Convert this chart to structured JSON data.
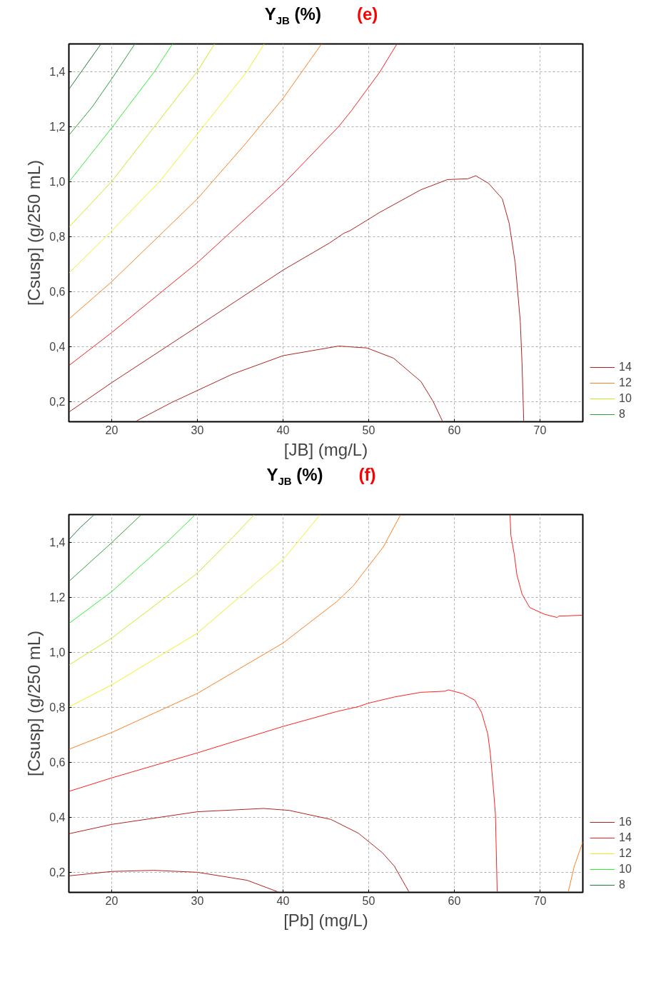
{
  "chart_data": [
    {
      "type": "line",
      "title": "Y$_{JB}$ (%)",
      "annotations": [
        "(e)"
      ],
      "xlabel": "[JB] (mg/L)",
      "ylabel": "[Csusp] (g/250 mL)",
      "xlim": [
        15,
        75
      ],
      "ylim": [
        0.127,
        1.5
      ],
      "xticks": [
        20,
        30,
        40,
        50,
        60,
        70
      ],
      "yticks": [
        {
          "value": 0.2,
          "label": "0,2"
        },
        {
          "value": 0.4,
          "label": "0,4"
        },
        {
          "value": 0.6,
          "label": "0,6"
        },
        {
          "value": 0.8,
          "label": "0,8"
        },
        {
          "value": 1.0,
          "label": "1,0"
        },
        {
          "value": 1.2,
          "label": "1,2"
        },
        {
          "value": 1.4,
          "label": "1,4"
        }
      ],
      "grid": true,
      "legend": "right",
      "series": [
        {
          "name": "14",
          "color": "#b22222",
          "x": [
            15,
            20,
            30,
            40,
            45.4,
            47.1,
            47.8,
            51.3,
            56.1,
            59.2,
            61.6,
            62.5,
            64.0,
            65.6,
            66.4,
            67.1,
            67.7,
            67.9,
            68.1
          ],
          "values": [
            0.162,
            0.269,
            0.473,
            0.678,
            0.776,
            0.812,
            0.821,
            0.888,
            0.97,
            1.007,
            1.01,
            1.021,
            0.993,
            0.937,
            0.848,
            0.705,
            0.491,
            0.339,
            0.13
          ]
        },
        {
          "name": "12",
          "color": "#ff8020",
          "x": [
            15,
            20,
            30,
            35.5,
            40,
            44.5
          ],
          "values": [
            0.5,
            0.636,
            0.937,
            1.133,
            1.302,
            1.5
          ]
        },
        {
          "name": "10",
          "color": "#c0f020",
          "x": [
            15,
            20,
            25,
            30,
            32.0
          ],
          "values": [
            0.834,
            1.0,
            1.2,
            1.4,
            1.5
          ]
        },
        {
          "name": "8",
          "color": "#2ea03c",
          "x": [
            15,
            17.7,
            20,
            22.7
          ],
          "values": [
            1.168,
            1.27,
            1.373,
            1.5
          ]
        },
        {
          "color": "#b22222",
          "x": [
            22.9,
            27.0,
            34.1,
            40,
            46.5,
            49.8,
            52.9,
            56.1,
            57.5,
            58.6
          ],
          "values": [
            0.13,
            0.197,
            0.3,
            0.367,
            0.402,
            0.395,
            0.358,
            0.273,
            0.202,
            0.13
          ]
        },
        {
          "color": "#ff2020",
          "x": [
            15,
            20,
            30,
            40,
            46.5,
            48.0,
            51.3,
            53.3
          ],
          "values": [
            0.331,
            0.451,
            0.705,
            0.99,
            1.2,
            1.258,
            1.398,
            1.5
          ]
        },
        {
          "color": "#f0f020",
          "x": [
            15,
            20,
            25.6,
            30.7,
            35.8,
            37.8
          ],
          "values": [
            0.667,
            0.821,
            1.0,
            1.2,
            1.4,
            1.5
          ]
        },
        {
          "color": "#33ee33",
          "x": [
            15,
            20,
            25,
            27.1
          ],
          "values": [
            0.998,
            1.195,
            1.4,
            1.5
          ]
        },
        {
          "color": "#1e7b3c",
          "x": [
            15,
            16.7,
            18.75
          ],
          "values": [
            1.335,
            1.41,
            1.5
          ]
        }
      ]
    },
    {
      "type": "line",
      "title": "Y$_{JB}$ (%)",
      "annotations": [
        "(f)"
      ],
      "xlabel": "[Pb] (mg/L)",
      "ylabel": "[Csusp] (g/250 mL)",
      "xlim": [
        15,
        75
      ],
      "ylim": [
        0.127,
        1.5
      ],
      "xticks": [
        20,
        30,
        40,
        50,
        60,
        70
      ],
      "yticks": [
        {
          "value": 0.2,
          "label": "0,2"
        },
        {
          "value": 0.4,
          "label": "0,4"
        },
        {
          "value": 0.6,
          "label": "0,6"
        },
        {
          "value": 0.8,
          "label": "0,8"
        },
        {
          "value": 1.0,
          "label": "1,0"
        },
        {
          "value": 1.2,
          "label": "1,2"
        },
        {
          "value": 1.4,
          "label": "1,4"
        }
      ],
      "grid": true,
      "legend": "right",
      "series": [
        {
          "name": "16",
          "color": "#b22222",
          "x": [
            15,
            20,
            24.9,
            30,
            35.8,
            39.4
          ],
          "values": [
            0.187,
            0.203,
            0.207,
            0.2,
            0.171,
            0.129
          ]
        },
        {
          "name": "14",
          "color": "#ff2020",
          "x": [
            15,
            20,
            30,
            40,
            46.25,
            48.8,
            49.9,
            53.0,
            56.1,
            58.9,
            59.3,
            61.0,
            62.4,
            63.2,
            63.9,
            64.2,
            64.4,
            64.6,
            64.8,
            65.0
          ],
          "values": [
            0.494,
            0.543,
            0.634,
            0.73,
            0.784,
            0.802,
            0.814,
            0.837,
            0.854,
            0.858,
            0.863,
            0.849,
            0.825,
            0.779,
            0.703,
            0.632,
            0.561,
            0.489,
            0.409,
            0.129
          ]
        },
        {
          "name": "12",
          "color": "#f0f020",
          "x": [
            15,
            20,
            30,
            40,
            44.3
          ],
          "values": [
            0.801,
            0.881,
            1.069,
            1.336,
            1.498
          ]
        },
        {
          "name": "10",
          "color": "#33ee33",
          "x": [
            15,
            20,
            26.4,
            29.7
          ],
          "values": [
            1.104,
            1.22,
            1.398,
            1.498
          ]
        },
        {
          "name": "8",
          "color": "#1e7b3c",
          "x": [
            15,
            16.3,
            17.9
          ],
          "values": [
            1.409,
            1.452,
            1.498
          ]
        },
        {
          "color": "#b22222",
          "x": [
            15,
            20,
            30,
            37.7,
            40.7,
            45.6,
            48.8,
            51.6,
            53.0,
            54.7
          ],
          "values": [
            0.34,
            0.374,
            0.42,
            0.432,
            0.425,
            0.392,
            0.342,
            0.271,
            0.222,
            0.129
          ]
        },
        {
          "color": "#ff2020",
          "x": [
            66.5,
            66.6,
            67.0,
            67.3,
            67.9,
            68.8,
            70.5,
            72.0,
            72.2,
            75
          ],
          "values": [
            1.498,
            1.425,
            1.354,
            1.282,
            1.211,
            1.162,
            1.138,
            1.126,
            1.131,
            1.134
          ]
        },
        {
          "color": "#ff8020",
          "x": [
            15,
            20,
            30,
            40,
            46.25,
            48.2,
            51.7,
            53.7
          ],
          "values": [
            0.647,
            0.708,
            0.85,
            1.033,
            1.183,
            1.241,
            1.382,
            1.498
          ]
        },
        {
          "color": "#ff8020",
          "x": [
            73.3,
            74.0,
            75
          ],
          "values": [
            0.129,
            0.222,
            0.311
          ]
        },
        {
          "color": "#c0f020",
          "x": [
            15,
            20,
            30,
            34.1,
            36.6
          ],
          "values": [
            0.953,
            1.051,
            1.287,
            1.416,
            1.498
          ]
        },
        {
          "color": "#2ea03c",
          "x": [
            15,
            20,
            23.4
          ],
          "values": [
            1.257,
            1.398,
            1.498
          ]
        }
      ]
    }
  ]
}
